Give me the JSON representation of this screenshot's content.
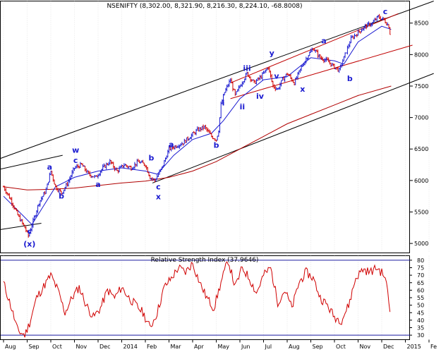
{
  "chart_data": [
    {
      "type": "candlestick",
      "title": "NSENIFTY (8,302.00, 8,321.90, 8,216.30, 8,224.10, -68.8008)",
      "ylim": [
        4850,
        8850
      ],
      "y_ticks": [
        5000,
        5500,
        6000,
        6500,
        7000,
        7500,
        8000,
        8500
      ],
      "x_labels": [
        "Aug",
        "Sep",
        "Oct",
        "Nov",
        "Dec",
        "2014",
        "Feb",
        "Mar",
        "Apr",
        "May",
        "Jun",
        "Jul",
        "Aug",
        "Sep",
        "Oct",
        "Nov",
        "Dec",
        "2015",
        "Fe"
      ],
      "price_path": [
        {
          "m": 0.0,
          "v": 5900
        },
        {
          "m": 0.3,
          "v": 5700
        },
        {
          "m": 0.6,
          "v": 5450
        },
        {
          "m": 0.9,
          "v": 5250
        },
        {
          "m": 1.05,
          "v": 5120
        },
        {
          "m": 1.25,
          "v": 5350
        },
        {
          "m": 1.5,
          "v": 5650
        },
        {
          "m": 1.8,
          "v": 5850
        },
        {
          "m": 2.0,
          "v": 6150
        },
        {
          "m": 2.2,
          "v": 5900
        },
        {
          "m": 2.45,
          "v": 5800
        },
        {
          "m": 2.7,
          "v": 5950
        },
        {
          "m": 3.0,
          "v": 6200
        },
        {
          "m": 3.3,
          "v": 6250
        },
        {
          "m": 3.6,
          "v": 6100
        },
        {
          "m": 3.9,
          "v": 6050
        },
        {
          "m": 4.2,
          "v": 6200
        },
        {
          "m": 4.5,
          "v": 6300
        },
        {
          "m": 4.8,
          "v": 6150
        },
        {
          "m": 5.1,
          "v": 6250
        },
        {
          "m": 5.4,
          "v": 6200
        },
        {
          "m": 5.7,
          "v": 6300
        },
        {
          "m": 6.0,
          "v": 6250
        },
        {
          "m": 6.2,
          "v": 6050
        },
        {
          "m": 6.4,
          "v": 6000
        },
        {
          "m": 6.7,
          "v": 6200
        },
        {
          "m": 7.0,
          "v": 6500
        },
        {
          "m": 7.3,
          "v": 6550
        },
        {
          "m": 7.6,
          "v": 6600
        },
        {
          "m": 7.9,
          "v": 6700
        },
        {
          "m": 8.2,
          "v": 6800
        },
        {
          "m": 8.5,
          "v": 6850
        },
        {
          "m": 8.8,
          "v": 6700
        },
        {
          "m": 9.0,
          "v": 6650
        },
        {
          "m": 9.1,
          "v": 6800
        },
        {
          "m": 9.2,
          "v": 7200
        },
        {
          "m": 9.35,
          "v": 7400
        },
        {
          "m": 9.6,
          "v": 7600
        },
        {
          "m": 9.8,
          "v": 7350
        },
        {
          "m": 10.0,
          "v": 7500
        },
        {
          "m": 10.3,
          "v": 7700
        },
        {
          "m": 10.6,
          "v": 7550
        },
        {
          "m": 10.9,
          "v": 7650
        },
        {
          "m": 11.2,
          "v": 7800
        },
        {
          "m": 11.4,
          "v": 7500
        },
        {
          "m": 11.6,
          "v": 7450
        },
        {
          "m": 11.8,
          "v": 7600
        },
        {
          "m": 12.0,
          "v": 7700
        },
        {
          "m": 12.3,
          "v": 7550
        },
        {
          "m": 12.6,
          "v": 7800
        },
        {
          "m": 12.9,
          "v": 8000
        },
        {
          "m": 13.1,
          "v": 8100
        },
        {
          "m": 13.4,
          "v": 7950
        },
        {
          "m": 13.7,
          "v": 7900
        },
        {
          "m": 14.0,
          "v": 7800
        },
        {
          "m": 14.2,
          "v": 7750
        },
        {
          "m": 14.4,
          "v": 7950
        },
        {
          "m": 14.7,
          "v": 8250
        },
        {
          "m": 15.0,
          "v": 8350
        },
        {
          "m": 15.3,
          "v": 8450
        },
        {
          "m": 15.6,
          "v": 8500
        },
        {
          "m": 15.85,
          "v": 8600
        },
        {
          "m": 16.1,
          "v": 8550
        },
        {
          "m": 16.3,
          "v": 8450
        },
        {
          "m": 16.4,
          "v": 8224
        }
      ],
      "ma_fast": [
        {
          "m": 0.0,
          "v": 5750
        },
        {
          "m": 0.8,
          "v": 5450
        },
        {
          "m": 1.2,
          "v": 5300
        },
        {
          "m": 1.7,
          "v": 5600
        },
        {
          "m": 2.2,
          "v": 5900
        },
        {
          "m": 3.0,
          "v": 6050
        },
        {
          "m": 4.0,
          "v": 6150
        },
        {
          "m": 5.0,
          "v": 6200
        },
        {
          "m": 6.0,
          "v": 6150
        },
        {
          "m": 6.5,
          "v": 6100
        },
        {
          "m": 7.2,
          "v": 6400
        },
        {
          "m": 8.0,
          "v": 6650
        },
        {
          "m": 8.8,
          "v": 6750
        },
        {
          "m": 9.3,
          "v": 6950
        },
        {
          "m": 10.0,
          "v": 7300
        },
        {
          "m": 11.0,
          "v": 7600
        },
        {
          "m": 12.0,
          "v": 7650
        },
        {
          "m": 13.0,
          "v": 7950
        },
        {
          "m": 14.0,
          "v": 7900
        },
        {
          "m": 14.4,
          "v": 7850
        },
        {
          "m": 15.0,
          "v": 8200
        },
        {
          "m": 16.0,
          "v": 8450
        },
        {
          "m": 16.4,
          "v": 8400
        }
      ],
      "ma_slow": [
        {
          "m": 0.0,
          "v": 5900
        },
        {
          "m": 1.0,
          "v": 5850
        },
        {
          "m": 2.0,
          "v": 5860
        },
        {
          "m": 3.0,
          "v": 5880
        },
        {
          "m": 4.0,
          "v": 5920
        },
        {
          "m": 5.0,
          "v": 5960
        },
        {
          "m": 6.0,
          "v": 5990
        },
        {
          "m": 7.0,
          "v": 6050
        },
        {
          "m": 8.0,
          "v": 6150
        },
        {
          "m": 9.0,
          "v": 6300
        },
        {
          "m": 10.0,
          "v": 6500
        },
        {
          "m": 11.0,
          "v": 6700
        },
        {
          "m": 12.0,
          "v": 6900
        },
        {
          "m": 13.0,
          "v": 7050
        },
        {
          "m": 14.0,
          "v": 7200
        },
        {
          "m": 15.0,
          "v": 7350
        },
        {
          "m": 16.4,
          "v": 7500
        }
      ],
      "trendlines": [
        {
          "color": "#000000",
          "points": [
            {
              "m": -0.5,
              "v": 6300
            },
            {
              "m": 18.2,
              "v": 8850
            }
          ]
        },
        {
          "color": "#000000",
          "points": [
            {
              "m": 6.3,
              "v": 5960
            },
            {
              "m": 18.2,
              "v": 7700
            }
          ]
        },
        {
          "color": "#000000",
          "points": [
            {
              "m": -0.5,
              "v": 6150
            },
            {
              "m": 2.5,
              "v": 6400
            }
          ]
        },
        {
          "color": "#000000",
          "points": [
            {
              "m": -0.5,
              "v": 5200
            },
            {
              "m": 1.6,
              "v": 5320
            }
          ]
        },
        {
          "color": "#c00000",
          "points": [
            {
              "m": 9.6,
              "v": 7300
            },
            {
              "m": 17.3,
              "v": 8150
            }
          ]
        },
        {
          "color": "#c00000",
          "points": [
            {
              "m": 9.6,
              "v": 7550
            },
            {
              "m": 16.7,
              "v": 8650
            }
          ]
        }
      ],
      "wave_labels": [
        {
          "text": "c",
          "m": 1.1,
          "v": 5150
        },
        {
          "text": "(x)",
          "m": 1.1,
          "v": 4950
        },
        {
          "text": "a",
          "m": 1.95,
          "v": 6170
        },
        {
          "text": "b",
          "m": 2.45,
          "v": 5710
        },
        {
          "text": "w",
          "m": 3.05,
          "v": 6440
        },
        {
          "text": "c",
          "m": 3.05,
          "v": 6280
        },
        {
          "text": "a",
          "m": 4.0,
          "v": 5900
        },
        {
          "text": "b",
          "m": 6.25,
          "v": 6320
        },
        {
          "text": "a",
          "m": 7.1,
          "v": 6530
        },
        {
          "text": "c",
          "m": 6.55,
          "v": 5860
        },
        {
          "text": "x",
          "m": 6.55,
          "v": 5700
        },
        {
          "text": "b",
          "m": 9.0,
          "v": 6520
        },
        {
          "text": "i",
          "m": 9.3,
          "v": 7190
        },
        {
          "text": "iii",
          "m": 10.3,
          "v": 7740
        },
        {
          "text": "ii",
          "m": 10.1,
          "v": 7130
        },
        {
          "text": "iv",
          "m": 10.85,
          "v": 7300
        },
        {
          "text": "y",
          "m": 11.35,
          "v": 7980
        },
        {
          "text": "v",
          "m": 11.55,
          "v": 7620
        },
        {
          "text": "x",
          "m": 12.65,
          "v": 7410
        },
        {
          "text": "a",
          "m": 13.55,
          "v": 8180
        },
        {
          "text": "b",
          "m": 14.65,
          "v": 7580
        },
        {
          "text": "c",
          "m": 16.15,
          "v": 8640
        }
      ]
    },
    {
      "type": "line",
      "title": "Relative Strength Index (37.9646)",
      "ylim": [
        27,
        83
      ],
      "y_ticks": [
        30,
        35,
        40,
        45,
        50,
        55,
        60,
        65,
        70,
        75,
        80
      ],
      "reference_lines": [
        30,
        80
      ],
      "series": [
        {
          "color": "#d00000",
          "points": [
            {
              "m": 0.0,
              "v": 65
            },
            {
              "m": 0.3,
              "v": 50
            },
            {
              "m": 0.6,
              "v": 33
            },
            {
              "m": 0.9,
              "v": 30
            },
            {
              "m": 1.1,
              "v": 38
            },
            {
              "m": 1.4,
              "v": 55
            },
            {
              "m": 1.8,
              "v": 65
            },
            {
              "m": 2.0,
              "v": 70
            },
            {
              "m": 2.3,
              "v": 60
            },
            {
              "m": 2.6,
              "v": 45
            },
            {
              "m": 2.9,
              "v": 55
            },
            {
              "m": 3.2,
              "v": 62
            },
            {
              "m": 3.5,
              "v": 50
            },
            {
              "m": 3.8,
              "v": 42
            },
            {
              "m": 4.1,
              "v": 48
            },
            {
              "m": 4.4,
              "v": 60
            },
            {
              "m": 4.7,
              "v": 55
            },
            {
              "m": 5.0,
              "v": 62
            },
            {
              "m": 5.3,
              "v": 55
            },
            {
              "m": 5.6,
              "v": 50
            },
            {
              "m": 5.9,
              "v": 45
            },
            {
              "m": 6.2,
              "v": 35
            },
            {
              "m": 6.5,
              "v": 45
            },
            {
              "m": 6.8,
              "v": 62
            },
            {
              "m": 7.1,
              "v": 68
            },
            {
              "m": 7.4,
              "v": 75
            },
            {
              "m": 7.7,
              "v": 72
            },
            {
              "m": 8.0,
              "v": 78
            },
            {
              "m": 8.3,
              "v": 65
            },
            {
              "m": 8.6,
              "v": 55
            },
            {
              "m": 8.9,
              "v": 48
            },
            {
              "m": 9.2,
              "v": 65
            },
            {
              "m": 9.5,
              "v": 80
            },
            {
              "m": 9.8,
              "v": 62
            },
            {
              "m": 10.1,
              "v": 75
            },
            {
              "m": 10.4,
              "v": 68
            },
            {
              "m": 10.7,
              "v": 58
            },
            {
              "m": 11.0,
              "v": 70
            },
            {
              "m": 11.3,
              "v": 75
            },
            {
              "m": 11.6,
              "v": 52
            },
            {
              "m": 11.9,
              "v": 60
            },
            {
              "m": 12.2,
              "v": 48
            },
            {
              "m": 12.5,
              "v": 65
            },
            {
              "m": 12.8,
              "v": 72
            },
            {
              "m": 13.1,
              "v": 68
            },
            {
              "m": 13.4,
              "v": 55
            },
            {
              "m": 13.7,
              "v": 50
            },
            {
              "m": 14.0,
              "v": 42
            },
            {
              "m": 14.3,
              "v": 40
            },
            {
              "m": 14.6,
              "v": 50
            },
            {
              "m": 14.9,
              "v": 68
            },
            {
              "m": 15.2,
              "v": 74
            },
            {
              "m": 15.5,
              "v": 72
            },
            {
              "m": 15.8,
              "v": 75
            },
            {
              "m": 16.1,
              "v": 70
            },
            {
              "m": 16.25,
              "v": 60
            },
            {
              "m": 16.4,
              "v": 38
            }
          ]
        }
      ]
    }
  ]
}
